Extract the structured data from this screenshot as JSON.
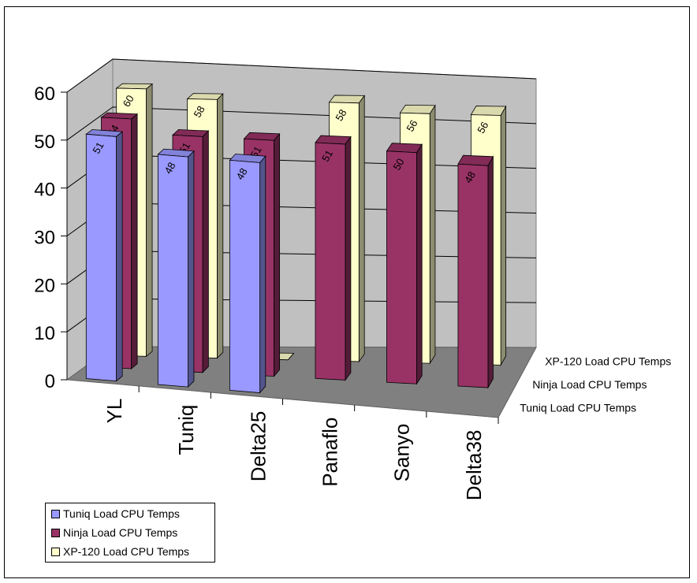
{
  "chart_data": {
    "type": "bar",
    "categories": [
      "YL",
      "Tuniq",
      "Delta25",
      "Panaflo",
      "Sanyo",
      "Delta38"
    ],
    "series": [
      {
        "name": "Tuniq Load CPU Temps",
        "values": [
          51,
          48,
          48,
          null,
          null,
          null
        ],
        "color": "#9999ff"
      },
      {
        "name": "Ninja Load CPU Temps",
        "values": [
          54,
          51,
          51,
          51,
          50,
          48
        ],
        "color": "#993366"
      },
      {
        "name": "XP-120 Load CPU Temps",
        "values": [
          60,
          58,
          0,
          58,
          56,
          56
        ],
        "color": "#ffffcc"
      }
    ],
    "ylim": [
      0,
      60
    ],
    "yticks": [
      "0",
      "10",
      "20",
      "30",
      "40",
      "50",
      "60"
    ],
    "grid": true,
    "legend_position": "bottom-left",
    "data_labels": true,
    "view": "3d-column"
  }
}
